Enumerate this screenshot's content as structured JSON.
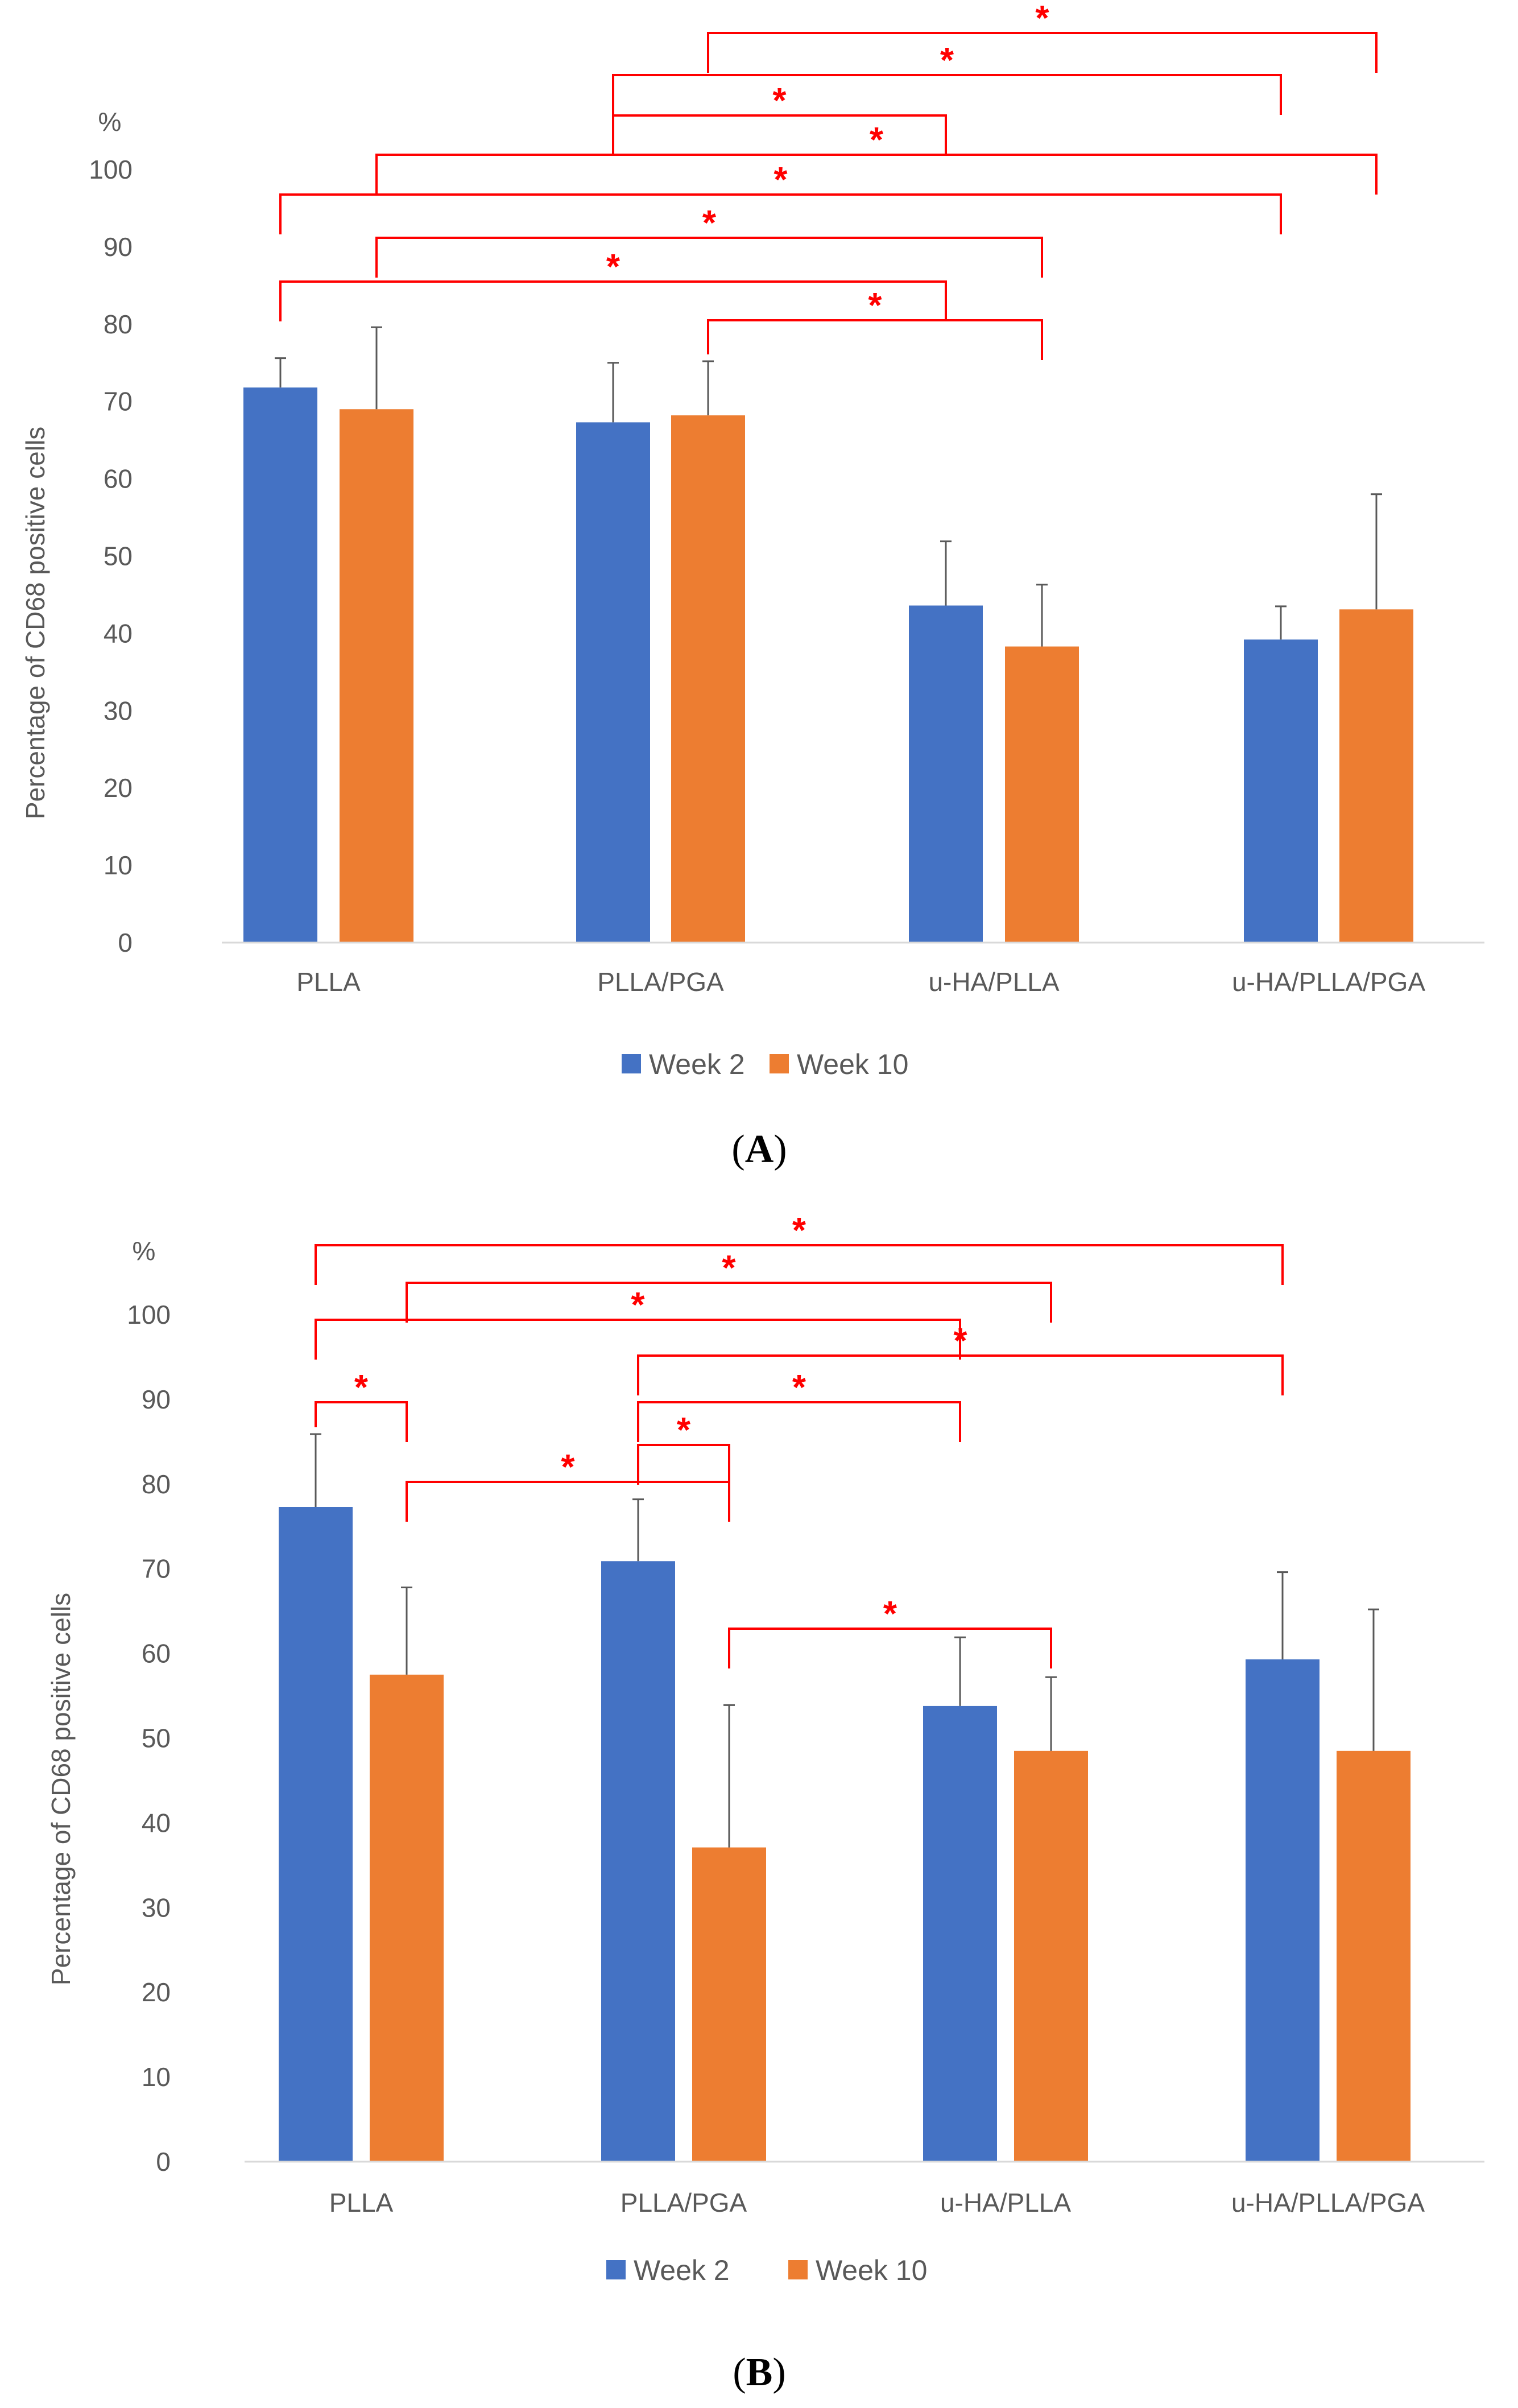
{
  "colors": {
    "week2": "#4472c4",
    "week10": "#ed7d31",
    "sig": "#ff0000",
    "axis": "#d9d9d9",
    "errbar": "#595959"
  },
  "chart_data": [
    {
      "type": "bar",
      "panel": "A",
      "panel_label": "(A)",
      "panel_letter": "A",
      "unit_label": "%",
      "ylabel": "Percentage of CD68 positive cells",
      "xlabel": "",
      "ylim": [
        0,
        100
      ],
      "yticks": [
        0,
        10,
        20,
        30,
        40,
        50,
        60,
        70,
        80,
        90,
        100
      ],
      "categories": [
        "PLLA",
        "PLLA/PGA",
        "u-HA/PLLA",
        "u-HA/PLLA/PGA"
      ],
      "series": [
        {
          "name": "Week 2",
          "values": [
            71.8,
            67.3,
            43.6,
            39.2
          ],
          "errors": [
            3.8,
            7.7,
            8.3,
            4.3
          ]
        },
        {
          "name": "Week 10",
          "values": [
            69.0,
            68.2,
            38.3,
            43.1
          ],
          "errors": [
            10.6,
            7.0,
            8.0,
            14.9
          ]
        }
      ],
      "legend": "bottom",
      "significance": [
        {
          "from": [
            1,
            1
          ],
          "to": [
            3,
            1
          ],
          "label": "*"
        },
        {
          "from": [
            1,
            0
          ],
          "to": [
            3,
            0
          ],
          "label": "*"
        },
        {
          "from": [
            1,
            0
          ],
          "to": [
            2,
            0
          ],
          "label": "*"
        },
        {
          "from": [
            0,
            1
          ],
          "to": [
            3,
            1
          ],
          "label": "*"
        },
        {
          "from": [
            0,
            0
          ],
          "to": [
            3,
            0
          ],
          "label": "*"
        },
        {
          "from": [
            0,
            1
          ],
          "to": [
            2,
            1
          ],
          "label": "*"
        },
        {
          "from": [
            0,
            0
          ],
          "to": [
            2,
            0
          ],
          "label": "*"
        },
        {
          "from": [
            1,
            1
          ],
          "to": [
            2,
            1
          ],
          "label": "*"
        }
      ]
    },
    {
      "type": "bar",
      "panel": "B",
      "panel_label": "(B)",
      "panel_letter": "B",
      "unit_label": "%",
      "ylabel": "Percentage of CD68 positive cells",
      "xlabel": "",
      "ylim": [
        0,
        100
      ],
      "yticks": [
        0,
        10,
        20,
        30,
        40,
        50,
        60,
        70,
        80,
        90,
        100
      ],
      "categories": [
        "PLLA",
        "PLLA/PGA",
        "u-HA/PLLA",
        "u-HA/PLLA/PGA"
      ],
      "series": [
        {
          "name": "Week 2",
          "values": [
            77.3,
            70.9,
            53.8,
            59.3
          ],
          "errors": [
            8.6,
            7.3,
            8.1,
            10.3
          ]
        },
        {
          "name": "Week 10",
          "values": [
            57.5,
            37.1,
            48.5,
            48.5
          ],
          "errors": [
            10.3,
            16.8,
            8.7,
            16.7
          ]
        }
      ],
      "legend": "bottom",
      "significance": [
        {
          "from": [
            0,
            0
          ],
          "to": [
            3,
            0
          ],
          "label": "*"
        },
        {
          "from": [
            0,
            1
          ],
          "to": [
            2,
            1
          ],
          "label": "*"
        },
        {
          "from": [
            0,
            0
          ],
          "to": [
            2,
            0
          ],
          "label": "*"
        },
        {
          "from": [
            1,
            0
          ],
          "to": [
            3,
            0
          ],
          "label": "*"
        },
        {
          "from": [
            1,
            0
          ],
          "to": [
            2,
            0
          ],
          "label": "*"
        },
        {
          "from": [
            0,
            0
          ],
          "to": [
            0,
            1
          ],
          "label": "*"
        },
        {
          "from": [
            1,
            0
          ],
          "to": [
            1,
            1
          ],
          "label": "*"
        },
        {
          "from": [
            0,
            1
          ],
          "to": [
            1,
            1
          ],
          "label": "*"
        },
        {
          "from": [
            1,
            1
          ],
          "to": [
            2,
            1
          ],
          "label": "*"
        }
      ]
    }
  ]
}
